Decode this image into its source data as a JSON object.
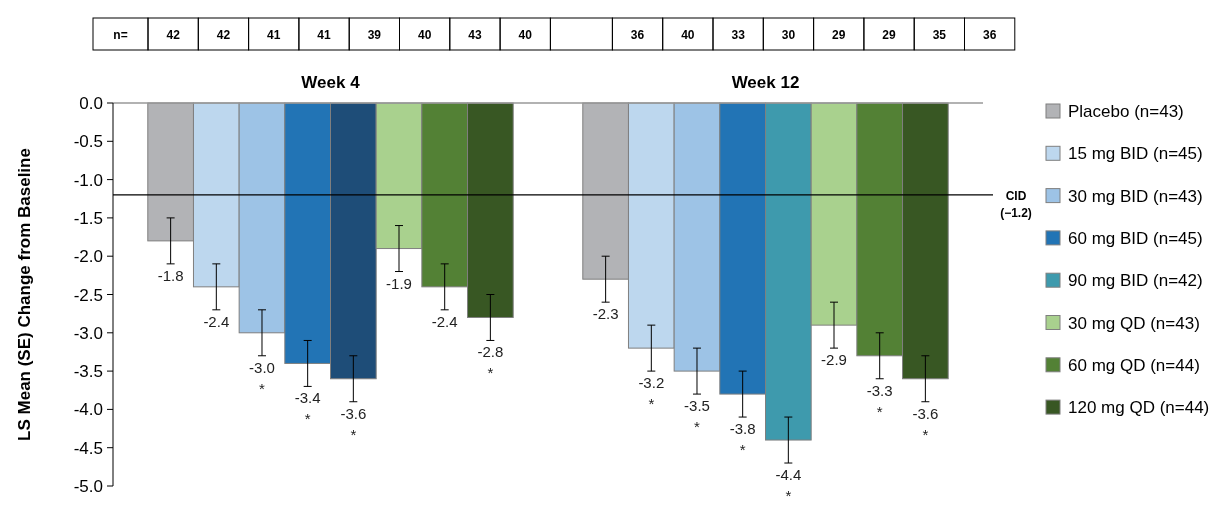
{
  "chart_data": {
    "type": "bar",
    "ylabel": "LS Mean (SE) Change from Baseline",
    "categories": [
      "Week 4",
      "Week 12"
    ],
    "ylim": [
      -5,
      0
    ],
    "yticks": [
      {
        "value": 0,
        "label": "0.0"
      },
      {
        "value": -0.5,
        "label": "-0.5"
      },
      {
        "value": -1,
        "label": "-1.0"
      },
      {
        "value": -1.5,
        "label": "-1.5"
      },
      {
        "value": -2,
        "label": "-2.0"
      },
      {
        "value": -2.5,
        "label": "-2.5"
      },
      {
        "value": -3,
        "label": "-3.0"
      },
      {
        "value": -3.5,
        "label": "-3.5"
      },
      {
        "value": -4,
        "label": "-4.0"
      },
      {
        "value": -4.5,
        "label": "-4.5"
      },
      {
        "value": -5,
        "label": "-5.0"
      }
    ],
    "series": [
      {
        "name": "Placebo (n=43)",
        "color": "#b2b3b6",
        "values": [
          -1.8,
          -2.3
        ],
        "errors": [
          0.3,
          0.3
        ],
        "value_labels": [
          "-1.8",
          "-2.3"
        ]
      },
      {
        "name": "15 mg BID (n=45)",
        "color": "#bdd7ee",
        "values": [
          -2.4,
          -3.2
        ],
        "errors": [
          0.3,
          0.3
        ],
        "value_labels": [
          "-2.4",
          "-3.2\n*"
        ]
      },
      {
        "name": "30 mg BID (n=43)",
        "color": "#9dc3e6",
        "values": [
          -3.0,
          -3.5
        ],
        "errors": [
          0.3,
          0.3
        ],
        "value_labels": [
          "-3.0\n*",
          "-3.5\n*"
        ]
      },
      {
        "name": "60 mg BID (n=45)",
        "color": "#2274b5",
        "values": [
          -3.4,
          -3.8
        ],
        "errors": [
          0.3,
          0.3
        ],
        "value_labels": [
          "-3.4\n*",
          "-3.8\n*"
        ]
      },
      {
        "name": "90 mg BID (n=42)",
        "color": "#3e9aad",
        "colors": [
          "#1e4d78",
          "#3e9aad"
        ],
        "values": [
          -3.6,
          -4.4
        ],
        "errors": [
          0.3,
          0.3
        ],
        "value_labels": [
          "-3.6\n*",
          "-4.4\n*"
        ]
      },
      {
        "name": "30 mg QD (n=43)",
        "color": "#a9d18e",
        "values": [
          -1.9,
          -2.9
        ],
        "errors": [
          0.3,
          0.3
        ],
        "value_labels": [
          "-1.9",
          "-2.9"
        ]
      },
      {
        "name": "60 mg QD (n=44)",
        "color": "#538135",
        "values": [
          -2.4,
          -3.3
        ],
        "errors": [
          0.3,
          0.3
        ],
        "value_labels": [
          "-2.4",
          "-3.3\n*"
        ]
      },
      {
        "name": "120 mg QD (n=44)",
        "color": "#385723",
        "values": [
          -2.8,
          -3.6
        ],
        "errors": [
          0.3,
          0.3
        ],
        "value_labels": [
          "-2.8\n*",
          "-3.6\n*"
        ]
      }
    ],
    "ref_lines": [
      {
        "axis": "y",
        "value": -1.2,
        "label": "CID\n(−1.2)",
        "color": "#000000"
      }
    ],
    "annotations": [
      "n=",
      "42",
      "42",
      "41",
      "41",
      "39",
      "40",
      "43",
      "40",
      "36",
      "40",
      "33",
      "30",
      "29",
      "29",
      "35",
      "36"
    ],
    "legend": "right"
  }
}
